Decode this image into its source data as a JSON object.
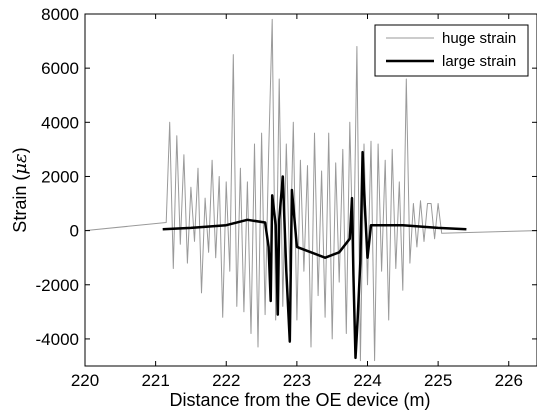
{
  "chart_data": {
    "type": "line",
    "title": "",
    "xlabel": "Distance from the OE device (m)",
    "ylabel": "Strain (",
    "ylabel_unit": "με",
    "ylabel_close": ")",
    "xlim": [
      220,
      226.4
    ],
    "ylim": [
      -5000,
      8000
    ],
    "xticks": [
      220,
      221,
      222,
      223,
      224,
      225,
      226
    ],
    "yticks": [
      -4000,
      -2000,
      0,
      2000,
      4000,
      6000,
      8000
    ],
    "grid": false,
    "legend_position": "top-right",
    "series": [
      {
        "name": "huge strain",
        "color": "#9a9a9a",
        "x": [
          220.0,
          221.15,
          221.2,
          221.25,
          221.3,
          221.35,
          221.4,
          221.45,
          221.5,
          221.55,
          221.6,
          221.65,
          221.7,
          221.75,
          221.8,
          221.85,
          221.9,
          221.95,
          222.0,
          222.05,
          222.1,
          222.15,
          222.2,
          222.25,
          222.3,
          222.35,
          222.4,
          222.45,
          222.5,
          222.55,
          222.6,
          222.65,
          222.7,
          222.75,
          222.8,
          222.85,
          222.9,
          222.95,
          223.0,
          223.05,
          223.1,
          223.15,
          223.2,
          223.25,
          223.3,
          223.35,
          223.4,
          223.45,
          223.5,
          223.55,
          223.6,
          223.65,
          223.7,
          223.75,
          223.8,
          223.85,
          223.9,
          223.95,
          224.0,
          224.05,
          224.1,
          224.15,
          224.2,
          224.25,
          224.3,
          224.35,
          224.4,
          224.45,
          224.5,
          224.55,
          224.6,
          224.65,
          224.7,
          224.75,
          224.8,
          224.85,
          224.9,
          224.95,
          225.0,
          225.05,
          226.4
        ],
        "y": [
          0,
          300,
          4000,
          -1400,
          3500,
          -500,
          2800,
          -1200,
          1600,
          -400,
          2300,
          -2300,
          1200,
          -800,
          2600,
          -1000,
          2000,
          -3200,
          1800,
          -1500,
          6500,
          -2800,
          2300,
          -3000,
          1800,
          -3800,
          3200,
          -4300,
          3600,
          -3100,
          2800,
          7800,
          -3300,
          5600,
          -2800,
          3200,
          -1500,
          4000,
          -3300,
          2600,
          -1500,
          2400,
          -4300,
          3600,
          -2400,
          2200,
          -3200,
          3600,
          -4000,
          2500,
          -1900,
          3000,
          -3800,
          4000,
          -1600,
          6800,
          -4800,
          3200,
          -2000,
          3300,
          -4800,
          3200,
          -1500,
          2600,
          -3300,
          3000,
          -1400,
          1800,
          -2200,
          5600,
          -1200,
          1000,
          -600,
          1100,
          -400,
          1000,
          1000,
          -300,
          1000,
          -100,
          0
        ]
      },
      {
        "name": "large strain",
        "color": "#000000",
        "x": [
          221.1,
          221.5,
          222.0,
          222.3,
          222.55,
          222.6,
          222.63,
          222.65,
          222.7,
          222.73,
          222.75,
          222.8,
          222.85,
          222.9,
          222.93,
          223.0,
          223.2,
          223.4,
          223.6,
          223.75,
          223.78,
          223.8,
          223.83,
          223.86,
          223.9,
          223.93,
          223.95,
          224.0,
          224.05,
          224.1,
          224.5,
          225.0,
          225.4
        ],
        "y": [
          50,
          100,
          200,
          400,
          300,
          -600,
          -2600,
          1300,
          200,
          -3100,
          400,
          2000,
          -1500,
          -4100,
          1500,
          -600,
          -800,
          -1000,
          -800,
          -300,
          1200,
          -1600,
          -4700,
          -3300,
          -1100,
          2900,
          1500,
          -1000,
          200,
          200,
          200,
          100,
          50
        ]
      }
    ]
  }
}
